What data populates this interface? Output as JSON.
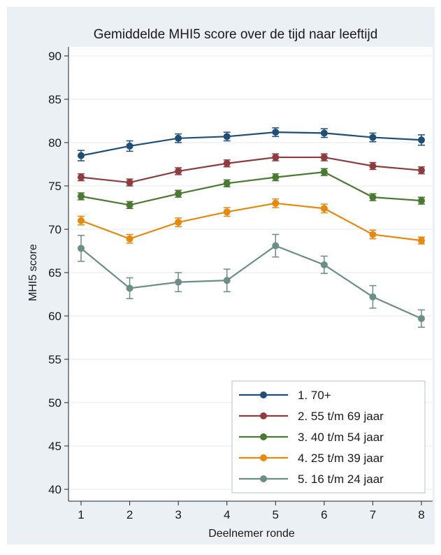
{
  "chart_data": {
    "type": "line",
    "title": "Gemiddelde MHI5 score over de tijd naar leeftijd",
    "xlabel": "Deelnemer ronde",
    "ylabel": "MHI5 score",
    "x": [
      1,
      2,
      3,
      4,
      5,
      6,
      7,
      8
    ],
    "ylim": [
      40,
      90
    ],
    "yticks": [
      40,
      45,
      50,
      55,
      60,
      65,
      70,
      75,
      80,
      85,
      90
    ],
    "grid": "horizontal",
    "legend_position": "bottom-right",
    "error_bars": true,
    "series": [
      {
        "name": "1. 70+",
        "color": "#1f4e79",
        "values": [
          78.5,
          79.6,
          80.5,
          80.7,
          81.2,
          81.1,
          80.6,
          80.3
        ],
        "err": [
          0.6,
          0.6,
          0.5,
          0.5,
          0.5,
          0.5,
          0.5,
          0.6
        ]
      },
      {
        "name": "2. 55 t/m 69 jaar",
        "color": "#903c3e",
        "values": [
          76.0,
          75.4,
          76.7,
          77.6,
          78.3,
          78.3,
          77.3,
          76.8
        ],
        "err": [
          0.4,
          0.4,
          0.4,
          0.4,
          0.4,
          0.4,
          0.4,
          0.4
        ]
      },
      {
        "name": "3. 40 t/m 54 jaar",
        "color": "#4a7a2f",
        "values": [
          73.8,
          72.8,
          74.1,
          75.3,
          76.0,
          76.6,
          73.7,
          73.3
        ],
        "err": [
          0.4,
          0.4,
          0.4,
          0.4,
          0.4,
          0.4,
          0.4,
          0.4
        ]
      },
      {
        "name": "4. 25 t/m 39 jaar",
        "color": "#e8880c",
        "values": [
          71.0,
          68.9,
          70.8,
          72.0,
          73.0,
          72.4,
          69.4,
          68.7
        ],
        "err": [
          0.5,
          0.5,
          0.5,
          0.5,
          0.5,
          0.5,
          0.5,
          0.4
        ]
      },
      {
        "name": "5. 16 t/m 24 jaar",
        "color": "#6b8e86",
        "values": [
          67.8,
          63.2,
          63.9,
          64.1,
          68.1,
          65.9,
          62.2,
          59.7
        ],
        "err": [
          1.5,
          1.2,
          1.1,
          1.3,
          1.3,
          1.0,
          1.3,
          1.0
        ]
      }
    ]
  }
}
